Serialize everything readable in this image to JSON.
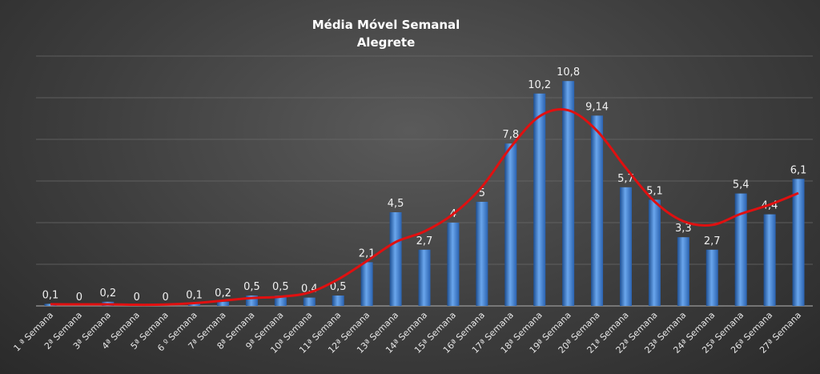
{
  "chart_data": {
    "type": "bar",
    "title": "Média  Móvel  Semanal",
    "subtitle": "Alegrete",
    "categories": [
      "1 ª Semana",
      "2ª Semana",
      "3ª Semana",
      "4ª Semana",
      "5ª Semana",
      "6 º Semana",
      "7ª Semana",
      "8ª Semana",
      "9ª Semana",
      "10ª Semana",
      "11ª Semana",
      "12ª Semana",
      "13ª Semana",
      "14ª Semana",
      "15ª Semana",
      "16ª Semana",
      "17ª Semana",
      "18ª Semana",
      "19ª Semana",
      "20ª Semana",
      "21ª Semana",
      "22ª Semana",
      "23ª Semana",
      "24ª Semana",
      "25ª Semana",
      "26ª Semana",
      "27ª Semana"
    ],
    "labels": [
      "0,1",
      "0",
      "0,2",
      "0",
      "0",
      "0,1",
      "0,2",
      "0,5",
      "0,5",
      "0,4",
      "0,5",
      "2,1",
      "4,5",
      "2,7",
      "4",
      "5",
      "7,8",
      "10,2",
      "10,8",
      "9,14",
      "5,7",
      "5,1",
      "3,3",
      "2,7",
      "5,4",
      "4,4",
      "6,1"
    ],
    "values": [
      0.1,
      0,
      0.2,
      0,
      0,
      0.1,
      0.2,
      0.5,
      0.5,
      0.4,
      0.5,
      2.1,
      4.5,
      2.7,
      4,
      5,
      7.8,
      10.2,
      10.8,
      9.14,
      5.7,
      5.1,
      3.3,
      2.7,
      5.4,
      4.4,
      6.1
    ],
    "trendline": {
      "type": "polynomial",
      "color": "#e01010"
    },
    "ylim": [
      0,
      12
    ],
    "grid": true,
    "colors": {
      "bar": "#3f7fd0",
      "bar_light": "#6aa6ec",
      "bar_dark": "#1e4f92",
      "trend": "#e01010",
      "grid": "#6a6a6a"
    }
  }
}
